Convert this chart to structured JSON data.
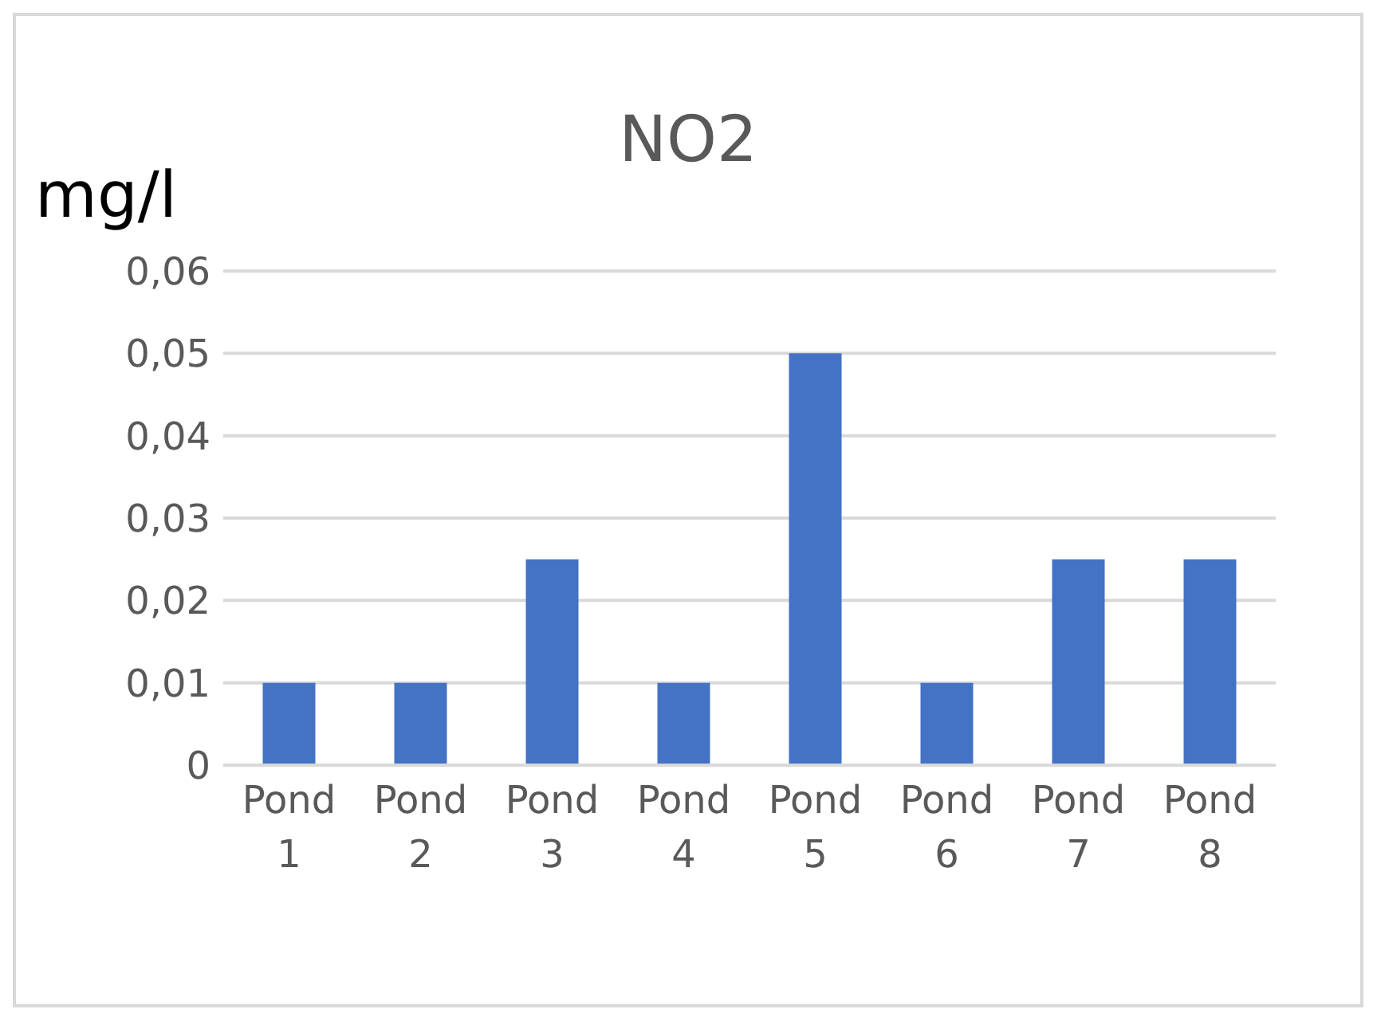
{
  "chart_data": {
    "type": "bar",
    "title": "NO2",
    "ylabel": "mg/l",
    "categories": [
      "Pond 1",
      "Pond 2",
      "Pond 3",
      "Pond 4",
      "Pond 5",
      "Pond 6",
      "Pond 7",
      "Pond 8"
    ],
    "values": [
      0.01,
      0.01,
      0.025,
      0.01,
      0.05,
      0.01,
      0.025,
      0.025
    ],
    "color": "#4472c4",
    "ylim": [
      0,
      0.06
    ],
    "yticks": [
      {
        "value": 0,
        "label": "0"
      },
      {
        "value": 0.01,
        "label": "0,01"
      },
      {
        "value": 0.02,
        "label": "0,02"
      },
      {
        "value": 0.03,
        "label": "0,03"
      },
      {
        "value": 0.04,
        "label": "0,04"
      },
      {
        "value": 0.05,
        "label": "0,05"
      },
      {
        "value": 0.06,
        "label": "0,06"
      }
    ],
    "grid": "y"
  }
}
